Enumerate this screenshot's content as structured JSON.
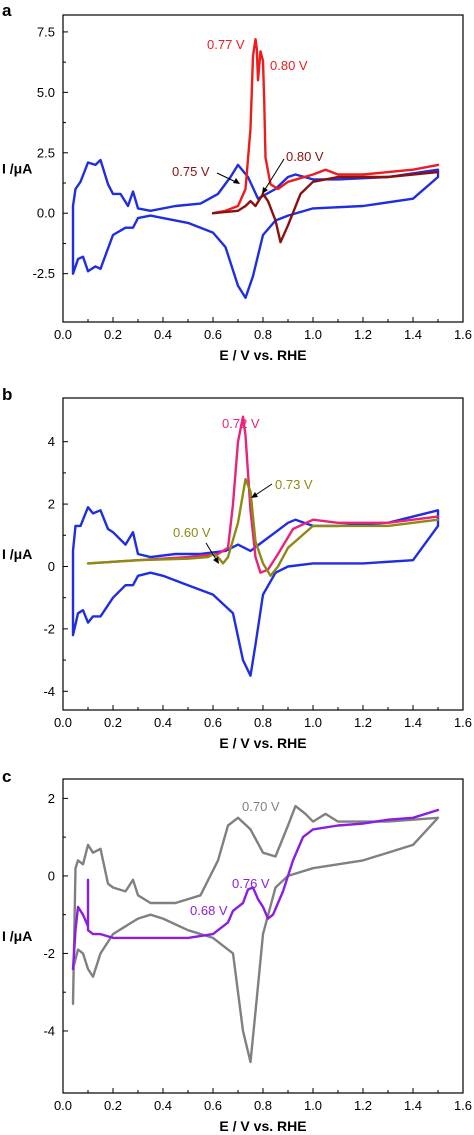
{
  "chart_data": [
    {
      "type": "line",
      "panel": "a",
      "xlabel": "E / V vs. RHE",
      "ylabel": "I /μA",
      "xlim": [
        0.0,
        1.6
      ],
      "ylim": [
        -4.5,
        8.2
      ],
      "xticks": [
        "0.0",
        "0.2",
        "0.4",
        "0.6",
        "0.8",
        "1.0",
        "1.2",
        "1.4",
        "1.6"
      ],
      "yticks": [
        "-2.5",
        "0.0",
        "2.5",
        "5.0",
        "7.5"
      ],
      "ytick_values": [
        -2.5,
        0.0,
        2.5,
        5.0,
        7.5
      ],
      "series": [
        {
          "color": "#1f2ee0",
          "x": [
            0.04,
            0.04,
            0.05,
            0.07,
            0.1,
            0.13,
            0.15,
            0.18,
            0.2,
            0.23,
            0.26,
            0.28,
            0.3,
            0.35,
            0.45,
            0.55,
            0.62,
            0.67,
            0.7,
            0.74,
            0.78,
            0.85,
            0.9,
            0.93,
            1.0,
            1.1,
            1.3,
            1.5,
            1.5,
            1.4,
            1.2,
            1.0,
            0.9,
            0.85,
            0.8,
            0.76,
            0.73,
            0.7,
            0.65,
            0.6,
            0.5,
            0.4,
            0.35,
            0.3,
            0.28,
            0.25,
            0.2,
            0.15,
            0.13,
            0.1,
            0.08,
            0.06,
            0.04
          ],
          "y": [
            -2.5,
            0.3,
            1.0,
            1.3,
            2.1,
            2.0,
            2.2,
            1.2,
            0.8,
            0.8,
            0.3,
            0.9,
            0.2,
            0.1,
            0.3,
            0.4,
            0.8,
            1.5,
            2.0,
            1.5,
            0.6,
            1.0,
            1.5,
            1.6,
            1.4,
            1.4,
            1.5,
            1.8,
            1.5,
            0.6,
            0.3,
            0.2,
            -0.1,
            -0.3,
            -0.9,
            -2.6,
            -3.5,
            -3.0,
            -1.4,
            -0.8,
            -0.4,
            -0.2,
            -0.1,
            -0.2,
            -0.6,
            -0.6,
            -0.9,
            -2.3,
            -2.2,
            -2.4,
            -1.8,
            -1.9,
            -2.5
          ]
        },
        {
          "color": "#ee1c1c",
          "x": [
            0.6,
            0.65,
            0.7,
            0.73,
            0.75,
            0.76,
            0.77,
            0.775,
            0.78,
            0.79,
            0.8,
            0.805,
            0.81,
            0.83,
            0.86,
            0.9,
            1.0,
            1.05,
            1.1,
            1.2,
            1.3,
            1.4,
            1.5
          ],
          "y": [
            0.0,
            0.1,
            0.3,
            1.0,
            3.5,
            6.5,
            7.2,
            6.8,
            5.5,
            6.7,
            6.3,
            4.5,
            2.3,
            1.2,
            1.0,
            1.3,
            1.6,
            1.8,
            1.6,
            1.6,
            1.7,
            1.8,
            2.0
          ]
        },
        {
          "color": "#8b1010",
          "x": [
            0.6,
            0.7,
            0.73,
            0.75,
            0.77,
            0.8,
            0.82,
            0.85,
            0.87,
            0.9,
            0.95,
            1.0,
            1.1,
            1.2,
            1.3,
            1.4,
            1.5
          ],
          "y": [
            0.0,
            0.1,
            0.3,
            0.5,
            0.3,
            0.8,
            0.5,
            -0.3,
            -1.2,
            -0.5,
            0.8,
            1.3,
            1.5,
            1.5,
            1.5,
            1.6,
            1.7
          ]
        }
      ],
      "annotations": [
        {
          "text": "0.77 V",
          "color": "#ee1c1c"
        },
        {
          "text": "0.80 V",
          "color": "#ee1c1c"
        },
        {
          "text": "0.80 V",
          "color": "#8b1010"
        },
        {
          "text": "0.75 V",
          "color": "#8b1010"
        }
      ]
    },
    {
      "type": "line",
      "panel": "b",
      "xlabel": "E / V vs. RHE",
      "ylabel": "I /μA",
      "xlim": [
        0.0,
        1.6
      ],
      "ylim": [
        -4.6,
        5.4
      ],
      "xticks": [
        "0.0",
        "0.2",
        "0.4",
        "0.6",
        "0.8",
        "1.0",
        "1.2",
        "1.4",
        "1.6"
      ],
      "yticks": [
        "-4",
        "-2",
        "0",
        "2",
        "4"
      ],
      "ytick_values": [
        -4,
        -2,
        0,
        2,
        4
      ],
      "series": [
        {
          "color": "#1f2ee0",
          "x": [
            0.04,
            0.04,
            0.05,
            0.07,
            0.1,
            0.12,
            0.15,
            0.18,
            0.2,
            0.25,
            0.28,
            0.3,
            0.35,
            0.45,
            0.55,
            0.65,
            0.7,
            0.75,
            0.8,
            0.85,
            0.9,
            0.93,
            1.0,
            1.1,
            1.3,
            1.5,
            1.5,
            1.4,
            1.2,
            1.0,
            0.9,
            0.85,
            0.8,
            0.77,
            0.75,
            0.72,
            0.68,
            0.6,
            0.5,
            0.4,
            0.35,
            0.3,
            0.28,
            0.25,
            0.2,
            0.15,
            0.12,
            0.1,
            0.08,
            0.06,
            0.04
          ],
          "y": [
            -2.2,
            0.5,
            1.3,
            1.3,
            1.9,
            1.7,
            1.8,
            1.2,
            1.1,
            0.7,
            1.1,
            0.4,
            0.3,
            0.4,
            0.4,
            0.5,
            0.7,
            0.5,
            0.8,
            1.1,
            1.4,
            1.5,
            1.3,
            1.3,
            1.4,
            1.8,
            1.3,
            0.2,
            0.1,
            0.1,
            0.0,
            -0.2,
            -0.9,
            -2.5,
            -3.5,
            -3.0,
            -1.5,
            -0.9,
            -0.6,
            -0.3,
            -0.2,
            -0.3,
            -0.6,
            -0.6,
            -1.0,
            -1.6,
            -1.6,
            -1.8,
            -1.4,
            -1.5,
            -2.2
          ]
        },
        {
          "color": "#e8237a",
          "x": [
            0.1,
            0.3,
            0.5,
            0.62,
            0.66,
            0.68,
            0.7,
            0.72,
            0.73,
            0.75,
            0.77,
            0.79,
            0.82,
            0.86,
            0.92,
            1.0,
            1.1,
            1.2,
            1.3,
            1.4,
            1.5
          ],
          "y": [
            0.1,
            0.2,
            0.3,
            0.4,
            0.6,
            2.0,
            4.0,
            4.8,
            4.2,
            1.8,
            0.3,
            -0.2,
            -0.1,
            0.4,
            1.2,
            1.5,
            1.4,
            1.4,
            1.4,
            1.5,
            1.6
          ]
        },
        {
          "color": "#8e8a12",
          "x": [
            0.1,
            0.3,
            0.5,
            0.58,
            0.6,
            0.62,
            0.64,
            0.66,
            0.7,
            0.73,
            0.75,
            0.77,
            0.8,
            0.83,
            0.86,
            0.9,
            1.0,
            1.1,
            1.2,
            1.3,
            1.4,
            1.5
          ],
          "y": [
            0.1,
            0.2,
            0.25,
            0.3,
            0.4,
            0.3,
            0.1,
            0.3,
            1.4,
            2.8,
            2.4,
            0.8,
            0.1,
            -0.3,
            0.0,
            0.6,
            1.3,
            1.3,
            1.3,
            1.3,
            1.4,
            1.5
          ]
        }
      ],
      "annotations": [
        {
          "text": "0.72 V",
          "color": "#e8237a"
        },
        {
          "text": "0.73 V",
          "color": "#8e8a12"
        },
        {
          "text": "0.60 V",
          "color": "#8e8a12"
        }
      ]
    },
    {
      "type": "line",
      "panel": "c",
      "xlabel": "E / V vs. RHE",
      "ylabel": "I /μA",
      "xlim": [
        0.0,
        1.6
      ],
      "ylim": [
        -5.6,
        2.5
      ],
      "xticks": [
        "0.0",
        "0.2",
        "0.4",
        "0.6",
        "0.8",
        "1.0",
        "1.2",
        "1.4",
        "1.6"
      ],
      "yticks": [
        "-4",
        "-2",
        "0",
        "2"
      ],
      "ytick_values": [
        -4,
        -2,
        0,
        2
      ],
      "series": [
        {
          "color": "#808080",
          "x": [
            0.04,
            0.05,
            0.06,
            0.08,
            0.1,
            0.12,
            0.15,
            0.18,
            0.2,
            0.25,
            0.28,
            0.3,
            0.35,
            0.45,
            0.55,
            0.62,
            0.66,
            0.7,
            0.75,
            0.8,
            0.85,
            0.9,
            0.93,
            0.97,
            1.0,
            1.05,
            1.1,
            1.3,
            1.5,
            1.5,
            1.4,
            1.2,
            1.0,
            0.9,
            0.85,
            0.8,
            0.77,
            0.75,
            0.72,
            0.68,
            0.6,
            0.5,
            0.4,
            0.35,
            0.3,
            0.25,
            0.2,
            0.15,
            0.12,
            0.1,
            0.08,
            0.06,
            0.04
          ],
          "y": [
            -3.3,
            0.2,
            0.4,
            0.3,
            0.8,
            0.6,
            0.7,
            -0.2,
            -0.3,
            -0.4,
            -0.1,
            -0.5,
            -0.7,
            -0.7,
            -0.5,
            0.4,
            1.3,
            1.5,
            1.2,
            0.6,
            0.5,
            1.3,
            1.8,
            1.6,
            1.4,
            1.6,
            1.4,
            1.4,
            1.5,
            1.5,
            0.8,
            0.4,
            0.2,
            0.0,
            -0.3,
            -1.5,
            -3.5,
            -4.8,
            -4.0,
            -2.0,
            -1.6,
            -1.4,
            -1.1,
            -1.0,
            -1.1,
            -1.3,
            -1.5,
            -2.0,
            -2.6,
            -2.4,
            -2.0,
            -1.9,
            -2.4
          ]
        },
        {
          "color": "#8a1ee0",
          "x": [
            0.04,
            0.05,
            0.06,
            0.08,
            0.1,
            0.1,
            0.1,
            0.12,
            0.15,
            0.2,
            0.3,
            0.4,
            0.5,
            0.6,
            0.66,
            0.68,
            0.7,
            0.72,
            0.74,
            0.76,
            0.78,
            0.8,
            0.82,
            0.84,
            0.88,
            0.92,
            0.96,
            1.0,
            1.1,
            1.2,
            1.3,
            1.4,
            1.5
          ],
          "y": [
            -2.4,
            -1.4,
            -0.8,
            -1.0,
            -1.3,
            -0.1,
            -1.4,
            -1.5,
            -1.5,
            -1.6,
            -1.6,
            -1.6,
            -1.6,
            -1.5,
            -1.2,
            -0.9,
            -0.8,
            -0.7,
            -0.35,
            -0.3,
            -0.6,
            -0.8,
            -1.1,
            -1.0,
            -0.4,
            0.4,
            1.0,
            1.2,
            1.3,
            1.35,
            1.45,
            1.5,
            1.7
          ]
        }
      ],
      "annotations": [
        {
          "text": "0.70 V",
          "color": "#808080"
        },
        {
          "text": "0.76 V",
          "color": "#8a1ee0"
        },
        {
          "text": "0.68 V",
          "color": "#8a1ee0"
        }
      ]
    }
  ]
}
